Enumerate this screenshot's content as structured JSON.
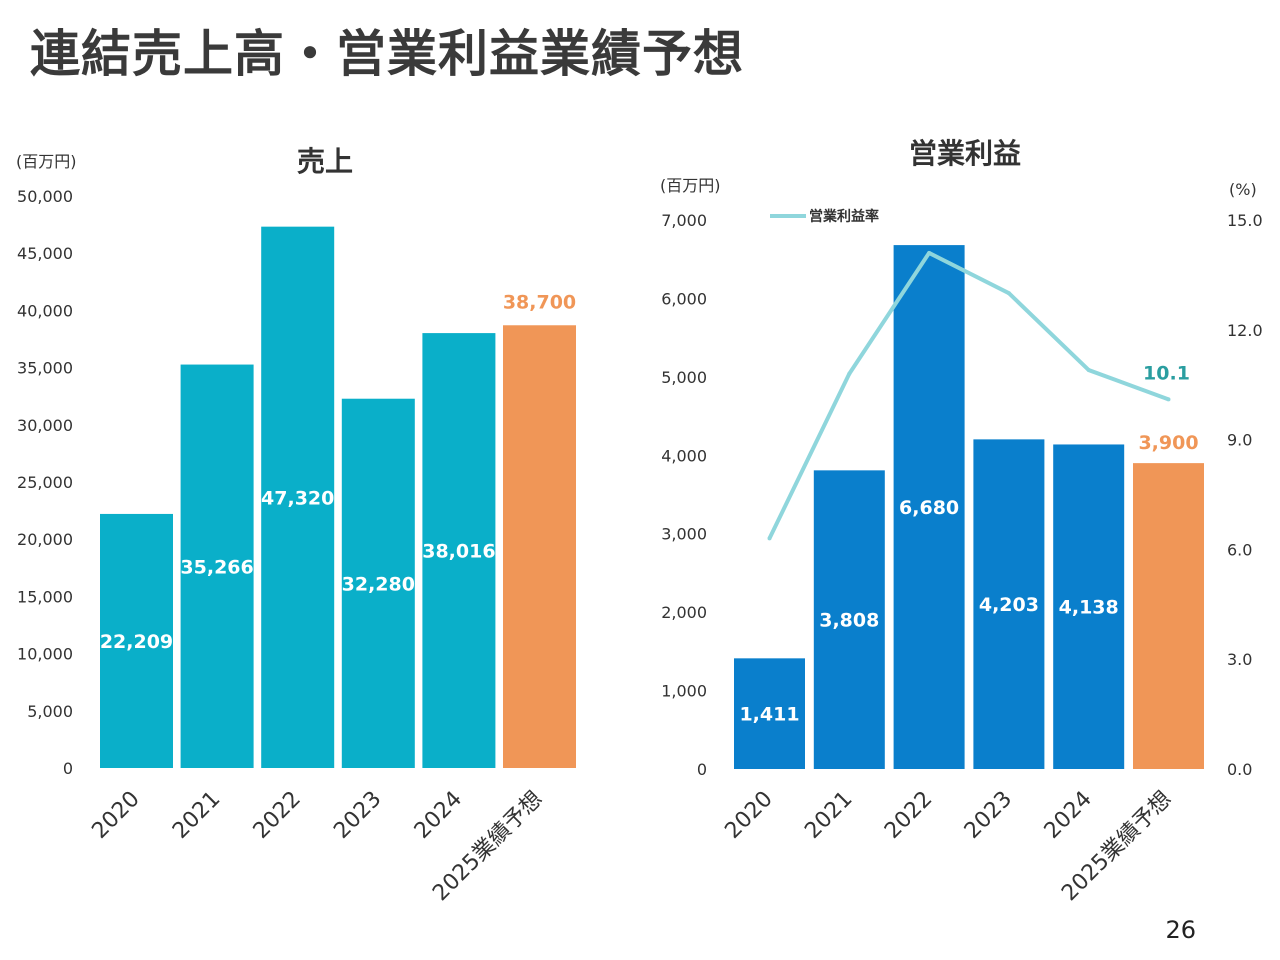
{
  "page": {
    "title": "連結売上高・営業利益業績予想",
    "page_number": "26"
  },
  "colors": {
    "sales_bar": "#0aafc9",
    "profit_bar": "#0a7fcc",
    "forecast_bar": "#f09657",
    "margin_line": "#8fd6dc",
    "margin_label": "#2a9ea0"
  },
  "chart_data": [
    {
      "type": "bar",
      "title": "売上",
      "unit_label": "(百万円)",
      "categories": [
        "2020",
        "2021",
        "2022",
        "2023",
        "2024",
        "2025業績予想"
      ],
      "values": [
        22209,
        35266,
        47320,
        32280,
        38016,
        38700
      ],
      "value_labels": [
        "22,209",
        "35,266",
        "47,320",
        "32,280",
        "38,016",
        "38,700"
      ],
      "ylim": [
        0,
        50000
      ],
      "y_ticks": [
        "0",
        "5,000",
        "10,000",
        "15,000",
        "20,000",
        "25,000",
        "30,000",
        "35,000",
        "40,000",
        "45,000",
        "50,000"
      ],
      "forecast_index": 5,
      "grid": false,
      "legend": "none"
    },
    {
      "type": "bar",
      "title": "営業利益",
      "unit_label": "(百万円)",
      "right_unit_label": "(%)",
      "categories": [
        "2020",
        "2021",
        "2022",
        "2023",
        "2024",
        "2025業績予想"
      ],
      "values": [
        1411,
        3808,
        6680,
        4203,
        4138,
        3900
      ],
      "value_labels": [
        "1,411",
        "3,808",
        "6,680",
        "4,203",
        "4,138",
        "3,900"
      ],
      "ylim": [
        0,
        7000
      ],
      "y_ticks": [
        "0",
        "1,000",
        "2,000",
        "3,000",
        "4,000",
        "5,000",
        "6,000",
        "7,000"
      ],
      "y2lim": [
        0,
        15
      ],
      "y2_ticks": [
        "0.0",
        "3.0",
        "6.0",
        "9.0",
        "12.0",
        "15.0"
      ],
      "forecast_index": 5,
      "line_series": {
        "name": "営業利益率",
        "axis": "right",
        "values": [
          6.3,
          10.8,
          14.1,
          13.0,
          10.9,
          10.1
        ],
        "end_label": "10.1"
      },
      "grid": false,
      "legend": "top-left"
    }
  ]
}
